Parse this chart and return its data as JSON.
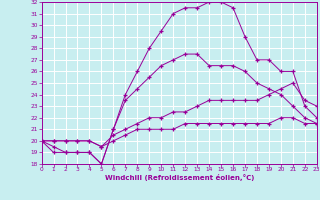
{
  "background_color": "#c8eef0",
  "grid_color": "#ffffff",
  "line_color": "#990099",
  "marker": "+",
  "xlabel": "Windchill (Refroidissement éolien,°C)",
  "ylabel_min": 18,
  "ylabel_max": 32,
  "xmin": 0,
  "xmax": 23,
  "curves": [
    {
      "x": [
        0,
        1,
        2,
        3,
        4,
        5,
        6,
        7,
        8,
        9,
        10,
        11,
        12,
        13,
        14,
        15,
        16,
        17,
        18,
        19,
        20,
        21,
        22,
        23
      ],
      "y": [
        20,
        19,
        19,
        19,
        19,
        18,
        21,
        24,
        26,
        28,
        29.5,
        31,
        31.5,
        31.5,
        32,
        32,
        31.5,
        29,
        27,
        27,
        26,
        26,
        23,
        22
      ]
    },
    {
      "x": [
        0,
        1,
        2,
        3,
        4,
        5,
        6,
        7,
        8,
        9,
        10,
        11,
        12,
        13,
        14,
        15,
        16,
        17,
        18,
        19,
        20,
        21,
        22,
        23
      ],
      "y": [
        20,
        19.5,
        19,
        19,
        19,
        18,
        21,
        23.5,
        24.5,
        25.5,
        26.5,
        27,
        27.5,
        27.5,
        26.5,
        26.5,
        26.5,
        26,
        25,
        24.5,
        24,
        23,
        22,
        21.5
      ]
    },
    {
      "x": [
        0,
        1,
        2,
        3,
        4,
        5,
        6,
        7,
        8,
        9,
        10,
        11,
        12,
        13,
        14,
        15,
        16,
        17,
        18,
        19,
        20,
        21,
        22,
        23
      ],
      "y": [
        20,
        20,
        20,
        20,
        20,
        19.5,
        20.5,
        21,
        21.5,
        22,
        22,
        22.5,
        22.5,
        23,
        23.5,
        23.5,
        23.5,
        23.5,
        23.5,
        24,
        24.5,
        25,
        23.5,
        23
      ]
    },
    {
      "x": [
        0,
        1,
        2,
        3,
        4,
        5,
        6,
        7,
        8,
        9,
        10,
        11,
        12,
        13,
        14,
        15,
        16,
        17,
        18,
        19,
        20,
        21,
        22,
        23
      ],
      "y": [
        20,
        20,
        20,
        20,
        20,
        19.5,
        20,
        20.5,
        21,
        21,
        21,
        21,
        21.5,
        21.5,
        21.5,
        21.5,
        21.5,
        21.5,
        21.5,
        21.5,
        22,
        22,
        21.5,
        21.5
      ]
    }
  ]
}
